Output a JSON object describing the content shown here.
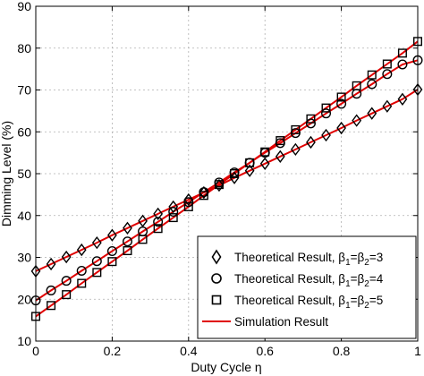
{
  "chart_data": {
    "type": "line",
    "xlabel": "Duty Cycle η",
    "ylabel": "Dimming Level (%)",
    "xlim": [
      0,
      1
    ],
    "ylim": [
      10,
      90
    ],
    "xticks": [
      0,
      0.2,
      0.4,
      0.6,
      0.8,
      1
    ],
    "yticks": [
      10,
      20,
      30,
      40,
      50,
      60,
      70,
      80,
      90
    ],
    "xtick_labels": [
      "0",
      "0.2",
      "0.4",
      "0.6",
      "0.8",
      "1"
    ],
    "ytick_labels": [
      "10",
      "20",
      "30",
      "40",
      "50",
      "60",
      "70",
      "80",
      "90"
    ],
    "grid": true,
    "legend_position": "bottom-right",
    "x": [
      0,
      0.04,
      0.08,
      0.12,
      0.16,
      0.2,
      0.24,
      0.28,
      0.32,
      0.36,
      0.4,
      0.44,
      0.48,
      0.52,
      0.56,
      0.6,
      0.64,
      0.68,
      0.72,
      0.76,
      0.8,
      0.84,
      0.88,
      0.92,
      0.96,
      1
    ],
    "series": [
      {
        "name_main": "Theoretical Result, β",
        "name_sub1": "1",
        "name_mid": "=β",
        "name_sub2": "2",
        "name_end": "=3",
        "marker": "diamond",
        "values": [
          26.7,
          28.4,
          30.1,
          31.8,
          33.5,
          35.3,
          37.0,
          38.7,
          40.4,
          42.1,
          43.8,
          45.5,
          47.2,
          49.0,
          50.7,
          52.4,
          54.1,
          55.8,
          57.5,
          59.2,
          60.9,
          62.7,
          64.4,
          66.1,
          67.8,
          70.1
        ]
      },
      {
        "name_main": "Theoretical Result, β",
        "name_sub1": "1",
        "name_mid": "=β",
        "name_sub2": "2",
        "name_end": "=4",
        "marker": "circle",
        "values": [
          19.7,
          22.1,
          24.4,
          26.8,
          29.1,
          31.5,
          33.8,
          36.2,
          38.5,
          40.9,
          43.2,
          45.6,
          47.9,
          50.3,
          52.6,
          55.0,
          57.3,
          59.7,
          62.0,
          64.4,
          66.7,
          69.1,
          71.4,
          73.8,
          76.1,
          77.1
        ]
      },
      {
        "name_main": "Theoretical Result, β",
        "name_sub1": "1",
        "name_mid": "=β",
        "name_sub2": "2",
        "name_end": "=5",
        "marker": "square",
        "values": [
          15.9,
          18.5,
          21.1,
          23.8,
          26.4,
          29.0,
          31.6,
          34.3,
          36.9,
          39.5,
          42.1,
          44.8,
          47.4,
          50.0,
          52.6,
          55.2,
          57.9,
          60.5,
          63.1,
          65.7,
          68.3,
          71.0,
          73.6,
          76.2,
          78.8,
          81.6
        ]
      }
    ],
    "simulation": {
      "name": "Simulation Result",
      "color": "#e00000"
    }
  }
}
